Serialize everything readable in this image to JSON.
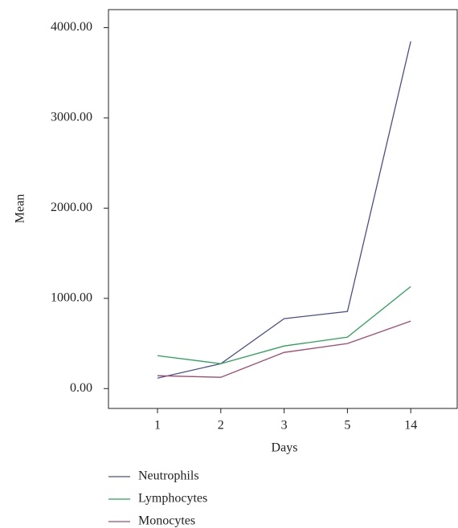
{
  "chart_data": {
    "type": "line",
    "xlabel": "Days",
    "ylabel": "Mean",
    "categories": [
      "1",
      "2",
      "3",
      "5",
      "14"
    ],
    "series": [
      {
        "name": "Neutrophils",
        "color": "#4b4f8a",
        "values": [
          116,
          276,
          775,
          855,
          3849
        ]
      },
      {
        "name": "Lymphocytes",
        "color": "#2ca05a",
        "values": [
          365,
          276,
          472,
          570,
          1131
        ]
      },
      {
        "name": "Monocytes",
        "color": "#a04a6e",
        "values": [
          143,
          125,
          401,
          499,
          748
        ]
      }
    ],
    "ylim": [
      -220,
      4200
    ],
    "yticks": [
      {
        "value": 0,
        "label": "0.00"
      },
      {
        "value": 1000,
        "label": "1000.00"
      },
      {
        "value": 2000,
        "label": "2000.00"
      },
      {
        "value": 3000,
        "label": "3000.00"
      },
      {
        "value": 4000,
        "label": "4000.00"
      }
    ],
    "legend": "bottom-left",
    "grid": false
  }
}
